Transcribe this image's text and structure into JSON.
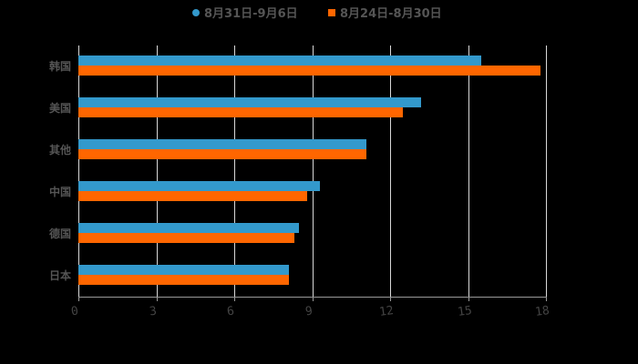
{
  "chart_data": {
    "type": "bar",
    "orientation": "horizontal",
    "title": "",
    "xlabel": "",
    "ylabel": "",
    "categories": [
      "韩国",
      "美国",
      "其他",
      "中国",
      "德国",
      "日本"
    ],
    "series": [
      {
        "name": "8月31日-9月6日",
        "color": "#3399cc",
        "marker": "circle",
        "values": [
          15.5,
          13.2,
          11.1,
          9.3,
          8.5,
          8.1
        ]
      },
      {
        "name": "8月24日-8月30日",
        "color": "#ff6600",
        "marker": "square",
        "values": [
          17.8,
          12.5,
          11.1,
          8.8,
          8.3,
          8.1
        ]
      }
    ],
    "xlim": [
      0,
      18
    ],
    "xticks": [
      "0",
      "3",
      "6",
      "9",
      "12",
      "15",
      "18"
    ],
    "grid": true,
    "legend_position": "top"
  }
}
